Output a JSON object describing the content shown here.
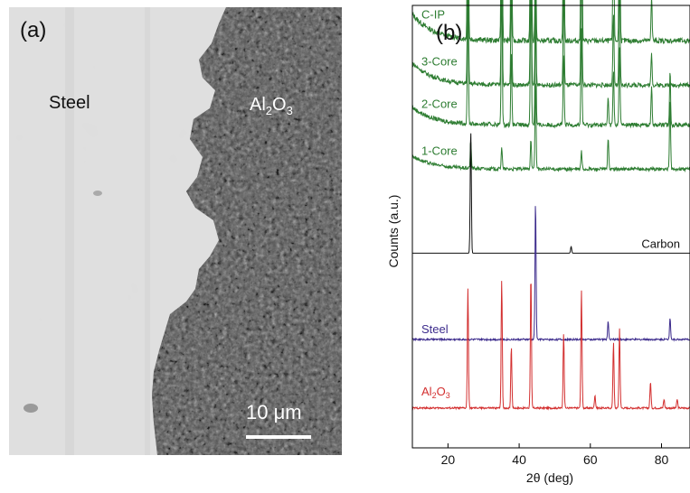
{
  "panel_a": {
    "label": "(a)",
    "steel_label": "Steel",
    "alumina_label": {
      "main": "Al",
      "sub1": "2",
      "mid": "O",
      "sub2": "3"
    },
    "scale_bar": "10 μm"
  },
  "chart_data": {
    "type": "line",
    "panel_label": "(b)",
    "xlabel": "2θ (deg)",
    "ylabel": "Counts (a.u.)",
    "xlim": [
      10,
      88
    ],
    "xticks": [
      20,
      40,
      60,
      80
    ],
    "yticks": "none",
    "grid": false,
    "series": [
      {
        "name": "C-IP",
        "color": "#2e7d32",
        "baseline": 0.92,
        "noise": 0.012,
        "slope": 0.06,
        "peaks": [
          [
            25.6,
            0.6
          ],
          [
            35.1,
            0.68
          ],
          [
            37.8,
            0.38
          ],
          [
            43.3,
            0.75
          ],
          [
            44.6,
            0.22
          ],
          [
            52.5,
            0.42
          ],
          [
            57.5,
            0.6
          ],
          [
            66.5,
            0.32
          ],
          [
            68.2,
            0.4
          ],
          [
            77.2,
            0.1
          ]
        ]
      },
      {
        "name": "3-Core",
        "color": "#2e7d32",
        "baseline": 0.82,
        "noise": 0.01,
        "slope": 0.05,
        "peaks": [
          [
            25.6,
            0.35
          ],
          [
            35.1,
            0.38
          ],
          [
            37.8,
            0.22
          ],
          [
            43.3,
            0.45
          ],
          [
            44.6,
            0.2
          ],
          [
            52.5,
            0.22
          ],
          [
            57.5,
            0.32
          ],
          [
            66.5,
            0.16
          ],
          [
            68.2,
            0.25
          ],
          [
            77.2,
            0.07
          ]
        ]
      },
      {
        "name": "2-Core",
        "color": "#2e7d32",
        "baseline": 0.73,
        "noise": 0.01,
        "slope": 0.04,
        "peaks": [
          [
            25.6,
            0.28
          ],
          [
            35.1,
            0.32
          ],
          [
            37.8,
            0.16
          ],
          [
            43.3,
            0.34
          ],
          [
            44.6,
            0.25
          ],
          [
            52.5,
            0.16
          ],
          [
            57.5,
            0.22
          ],
          [
            65.0,
            0.06
          ],
          [
            66.5,
            0.12
          ],
          [
            68.2,
            0.18
          ],
          [
            77.2,
            0.09
          ],
          [
            82.4,
            0.12
          ]
        ]
      },
      {
        "name": "1-Core",
        "color": "#2e7d32",
        "baseline": 0.63,
        "noise": 0.008,
        "slope": 0.03,
        "peaks": [
          [
            26.4,
            0.06
          ],
          [
            35.1,
            0.05
          ],
          [
            43.3,
            0.07
          ],
          [
            44.6,
            0.2
          ],
          [
            57.5,
            0.04
          ],
          [
            65.0,
            0.07
          ],
          [
            82.4,
            0.16
          ]
        ]
      },
      {
        "name": "Carbon",
        "color": "#111111",
        "baseline": 0.44,
        "noise": 0.0,
        "slope": 0.0,
        "peaks": [
          [
            26.4,
            0.28
          ],
          [
            54.6,
            0.015
          ]
        ]
      },
      {
        "name": "Steel",
        "color": "#3c2b8c",
        "baseline": 0.245,
        "noise": 0.004,
        "slope": 0.0,
        "peaks": [
          [
            44.6,
            0.31
          ],
          [
            65.0,
            0.04
          ],
          [
            82.4,
            0.05
          ]
        ]
      },
      {
        "name": "Al2O3",
        "color": "#d32f2f",
        "baseline": 0.09,
        "noise": 0.004,
        "slope": 0.0,
        "peaks": [
          [
            25.6,
            0.27
          ],
          [
            35.1,
            0.29
          ],
          [
            37.8,
            0.14
          ],
          [
            43.3,
            0.3
          ],
          [
            52.5,
            0.17
          ],
          [
            57.5,
            0.27
          ],
          [
            61.3,
            0.03
          ],
          [
            66.5,
            0.15
          ],
          [
            68.2,
            0.18
          ],
          [
            76.9,
            0.06
          ],
          [
            80.7,
            0.02
          ],
          [
            84.4,
            0.02
          ]
        ]
      }
    ]
  }
}
